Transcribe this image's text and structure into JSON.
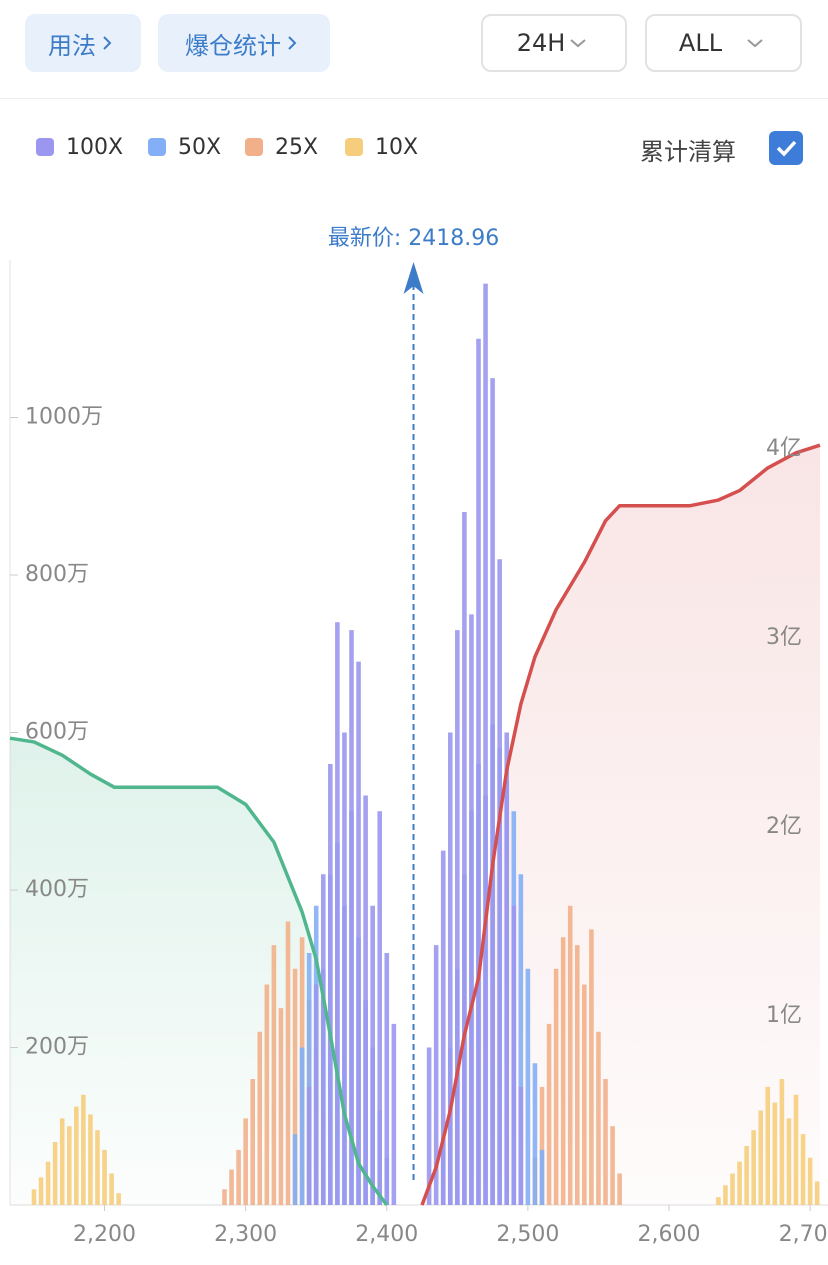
{
  "header": {
    "links": [
      "用法",
      "爆仓统计"
    ],
    "selects": [
      "24H",
      "ALL"
    ],
    "toggle": "累计清算"
  },
  "chart_data": {
    "type": "bar",
    "latest_price": {
      "value": 2418.96,
      "label": "最新价: 2418.96"
    },
    "xlim": [
      2133,
      2707
    ],
    "xticks": [
      {
        "value": 2200,
        "label": "2,200"
      },
      {
        "value": 2300,
        "label": "2,300"
      },
      {
        "value": 2400,
        "label": "2,400"
      },
      {
        "value": 2500,
        "label": "2,500"
      },
      {
        "value": 2600,
        "label": "2,600"
      },
      {
        "value": 2700,
        "label": "2,700"
      }
    ],
    "ylim": [
      0,
      1200
    ],
    "yticks": [
      {
        "value": 200,
        "label": "200万"
      },
      {
        "value": 400,
        "label": "400万"
      },
      {
        "value": 600,
        "label": "600万"
      },
      {
        "value": 800,
        "label": "800万"
      },
      {
        "value": 1000,
        "label": "1000万"
      }
    ],
    "y2lim": [
      0,
      5
    ],
    "y2ticks": [
      {
        "value": 1,
        "label": "1亿"
      },
      {
        "value": 2,
        "label": "2亿"
      },
      {
        "value": 3,
        "label": "3亿"
      },
      {
        "value": 4,
        "label": "4亿"
      }
    ],
    "series": [
      {
        "name": "100X",
        "color": "#9b97f0",
        "x": [
          2345,
          2350,
          2355,
          2360,
          2365,
          2370,
          2375,
          2380,
          2385,
          2390,
          2395,
          2400,
          2405,
          2430,
          2435,
          2440,
          2445,
          2450,
          2455,
          2460,
          2465,
          2470,
          2475,
          2480,
          2485,
          2490,
          2495
        ],
        "values": [
          150,
          280,
          420,
          560,
          740,
          600,
          730,
          690,
          520,
          380,
          500,
          320,
          230,
          200,
          330,
          450,
          600,
          730,
          880,
          750,
          1100,
          1170,
          1050,
          820,
          600,
          380,
          150
        ]
      },
      {
        "name": "50X",
        "color": "#84aef5",
        "x": [
          2335,
          2340,
          2345,
          2350,
          2355,
          2360,
          2365,
          2370,
          2375,
          2380,
          2385,
          2390,
          2395,
          2400,
          2440,
          2445,
          2450,
          2455,
          2460,
          2465,
          2470,
          2475,
          2480,
          2485,
          2490,
          2495,
          2500,
          2505,
          2510
        ],
        "values": [
          90,
          200,
          320,
          380,
          300,
          420,
          460,
          380,
          500,
          340,
          260,
          200,
          120,
          60,
          80,
          200,
          300,
          420,
          500,
          560,
          520,
          610,
          580,
          540,
          500,
          420,
          300,
          180,
          70
        ]
      },
      {
        "name": "25X",
        "color": "#f2b08a",
        "x": [
          2285,
          2290,
          2295,
          2300,
          2305,
          2310,
          2315,
          2320,
          2325,
          2330,
          2335,
          2340,
          2345,
          2350,
          2355,
          2505,
          2510,
          2515,
          2520,
          2525,
          2530,
          2535,
          2540,
          2545,
          2550,
          2555,
          2560,
          2565
        ],
        "values": [
          20,
          45,
          70,
          110,
          160,
          220,
          280,
          330,
          250,
          360,
          300,
          340,
          260,
          200,
          120,
          60,
          150,
          230,
          300,
          340,
          380,
          330,
          280,
          350,
          220,
          160,
          100,
          40
        ]
      },
      {
        "name": "10X",
        "color": "#f6cd7c",
        "x": [
          2150,
          2155,
          2160,
          2165,
          2170,
          2175,
          2180,
          2185,
          2190,
          2195,
          2200,
          2205,
          2210,
          2635,
          2640,
          2645,
          2650,
          2655,
          2660,
          2665,
          2670,
          2675,
          2680,
          2685,
          2690,
          2695,
          2700,
          2705
        ],
        "values": [
          20,
          35,
          55,
          80,
          110,
          100,
          125,
          140,
          115,
          95,
          70,
          40,
          15,
          10,
          25,
          40,
          55,
          75,
          95,
          120,
          150,
          130,
          160,
          110,
          140,
          90,
          60,
          30
        ]
      },
      {
        "type": "area",
        "axis": "y2",
        "color": "#4fb68e",
        "x": [
          2133,
          2150,
          2170,
          2190,
          2207,
          2280,
          2300,
          2320,
          2340,
          2350,
          2360,
          2370,
          2380,
          2390,
          2400
        ],
        "values": [
          2.47,
          2.45,
          2.38,
          2.28,
          2.21,
          2.21,
          2.12,
          1.92,
          1.55,
          1.3,
          0.9,
          0.48,
          0.22,
          0.1,
          0
        ]
      },
      {
        "type": "area",
        "axis": "y2",
        "color": "#d64f4f",
        "x": [
          2425,
          2435,
          2445,
          2455,
          2465,
          2475,
          2485,
          2495,
          2505,
          2520,
          2540,
          2555,
          2565,
          2615,
          2635,
          2650,
          2670,
          2690,
          2707
        ],
        "values": [
          0,
          0.2,
          0.5,
          0.9,
          1.2,
          1.8,
          2.3,
          2.65,
          2.9,
          3.15,
          3.4,
          3.62,
          3.7,
          3.7,
          3.73,
          3.78,
          3.9,
          3.98,
          4.02
        ]
      }
    ]
  }
}
